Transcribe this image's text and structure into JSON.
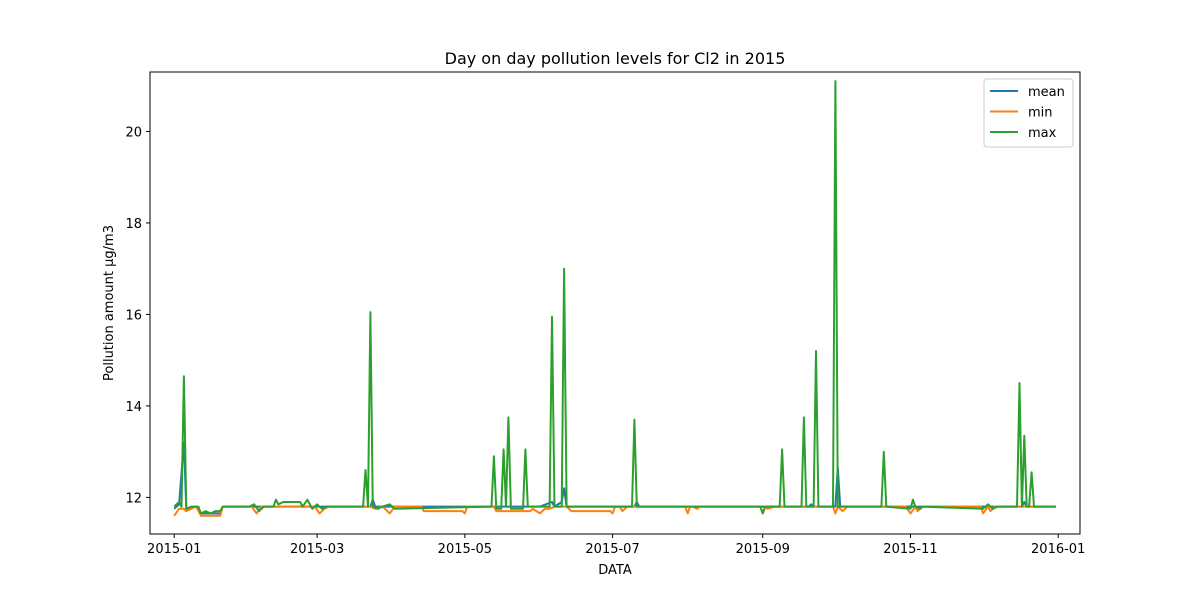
{
  "chart_data": {
    "type": "line",
    "title": "Day on day pollution levels for Cl2 in 2015",
    "xlabel": "DATA",
    "ylabel": "Pollution amount µg/m3",
    "xlim": [
      "2014-12-22",
      "2016-01-10"
    ],
    "ylim": [
      11.2,
      21.3
    ],
    "x_ticks": [
      "2015-01",
      "2015-03",
      "2015-05",
      "2015-07",
      "2015-09",
      "2015-11",
      "2016-01"
    ],
    "x_tick_dates": [
      "2015-01-01",
      "2015-03-01",
      "2015-05-01",
      "2015-07-01",
      "2015-09-01",
      "2015-11-01",
      "2016-01-01"
    ],
    "y_ticks": [
      12,
      14,
      16,
      18,
      20
    ],
    "grid": false,
    "legend": "top-right",
    "baseline": 11.8,
    "series": [
      {
        "name": "mean",
        "color": "#1f77b4",
        "points": [
          [
            "2015-01-01",
            11.75
          ],
          [
            "2015-01-03",
            11.85
          ],
          [
            "2015-01-05",
            13.2
          ],
          [
            "2015-01-06",
            11.75
          ],
          [
            "2015-01-10",
            11.8
          ],
          [
            "2015-01-12",
            11.65
          ],
          [
            "2015-01-20",
            11.65
          ],
          [
            "2015-01-21",
            11.8
          ],
          [
            "2015-03-23",
            11.8
          ],
          [
            "2015-03-24",
            11.95
          ],
          [
            "2015-03-25",
            11.8
          ],
          [
            "2015-05-31",
            11.8
          ],
          [
            "2015-06-01",
            11.8
          ],
          [
            "2015-06-06",
            11.9
          ],
          [
            "2015-06-07",
            11.8
          ],
          [
            "2015-06-10",
            11.9
          ],
          [
            "2015-06-11",
            12.2
          ],
          [
            "2015-06-12",
            11.8
          ],
          [
            "2015-07-10",
            11.8
          ],
          [
            "2015-07-11",
            11.9
          ],
          [
            "2015-07-12",
            11.8
          ],
          [
            "2015-09-20",
            11.8
          ],
          [
            "2015-09-21",
            11.85
          ],
          [
            "2015-09-22",
            11.8
          ],
          [
            "2015-10-01",
            11.8
          ],
          [
            "2015-10-02",
            12.65
          ],
          [
            "2015-10-03",
            11.8
          ],
          [
            "2015-12-17",
            11.8
          ],
          [
            "2015-12-18",
            11.9
          ],
          [
            "2015-12-19",
            11.8
          ],
          [
            "2015-12-31",
            11.8
          ]
        ]
      },
      {
        "name": "min",
        "color": "#ff7f0e",
        "points": [
          [
            "2015-01-01",
            11.6
          ],
          [
            "2015-01-03",
            11.75
          ],
          [
            "2015-01-05",
            11.75
          ],
          [
            "2015-01-06",
            11.7
          ],
          [
            "2015-01-10",
            11.8
          ],
          [
            "2015-01-12",
            11.6
          ],
          [
            "2015-01-20",
            11.6
          ],
          [
            "2015-01-21",
            11.8
          ],
          [
            "2015-02-02",
            11.8
          ],
          [
            "2015-02-04",
            11.65
          ],
          [
            "2015-02-06",
            11.8
          ],
          [
            "2015-02-28",
            11.8
          ],
          [
            "2015-03-02",
            11.65
          ],
          [
            "2015-03-04",
            11.75
          ],
          [
            "2015-03-06",
            11.8
          ],
          [
            "2015-03-23",
            11.8
          ],
          [
            "2015-03-25",
            11.75
          ],
          [
            "2015-03-28",
            11.8
          ],
          [
            "2015-03-31",
            11.65
          ],
          [
            "2015-04-02",
            11.8
          ],
          [
            "2015-04-13",
            11.8
          ],
          [
            "2015-04-14",
            11.7
          ],
          [
            "2015-04-30",
            11.7
          ],
          [
            "2015-05-01",
            11.65
          ],
          [
            "2015-05-02",
            11.8
          ],
          [
            "2015-05-13",
            11.8
          ],
          [
            "2015-05-14",
            11.7
          ],
          [
            "2015-05-28",
            11.7
          ],
          [
            "2015-05-29",
            11.75
          ],
          [
            "2015-06-01",
            11.65
          ],
          [
            "2015-06-03",
            11.75
          ],
          [
            "2015-06-05",
            11.75
          ],
          [
            "2015-06-07",
            11.8
          ],
          [
            "2015-06-12",
            11.8
          ],
          [
            "2015-06-14",
            11.7
          ],
          [
            "2015-06-30",
            11.7
          ],
          [
            "2015-07-01",
            11.65
          ],
          [
            "2015-07-02",
            11.8
          ],
          [
            "2015-07-04",
            11.8
          ],
          [
            "2015-07-05",
            11.7
          ],
          [
            "2015-07-07",
            11.8
          ],
          [
            "2015-07-31",
            11.8
          ],
          [
            "2015-08-01",
            11.65
          ],
          [
            "2015-08-02",
            11.8
          ],
          [
            "2015-08-03",
            11.8
          ],
          [
            "2015-08-05",
            11.75
          ],
          [
            "2015-08-06",
            11.8
          ],
          [
            "2015-08-31",
            11.8
          ],
          [
            "2015-09-01",
            11.65
          ],
          [
            "2015-09-02",
            11.8
          ],
          [
            "2015-09-03",
            11.75
          ],
          [
            "2015-09-06",
            11.8
          ],
          [
            "2015-09-30",
            11.8
          ],
          [
            "2015-10-01",
            11.65
          ],
          [
            "2015-10-02",
            11.8
          ],
          [
            "2015-10-04",
            11.7
          ],
          [
            "2015-10-06",
            11.8
          ],
          [
            "2015-10-30",
            11.8
          ],
          [
            "2015-11-01",
            11.65
          ],
          [
            "2015-11-03",
            11.8
          ],
          [
            "2015-11-04",
            11.7
          ],
          [
            "2015-11-06",
            11.8
          ],
          [
            "2015-11-30",
            11.8
          ],
          [
            "2015-12-01",
            11.65
          ],
          [
            "2015-12-03",
            11.8
          ],
          [
            "2015-12-04",
            11.7
          ],
          [
            "2015-12-06",
            11.8
          ],
          [
            "2015-12-31",
            11.8
          ]
        ]
      },
      {
        "name": "max",
        "color": "#2ca02c",
        "points": [
          [
            "2015-01-01",
            11.8
          ],
          [
            "2015-01-03",
            11.9
          ],
          [
            "2015-01-04",
            11.8
          ],
          [
            "2015-01-05",
            14.65
          ],
          [
            "2015-01-06",
            11.75
          ],
          [
            "2015-01-08",
            11.8
          ],
          [
            "2015-01-11",
            11.8
          ],
          [
            "2015-01-12",
            11.65
          ],
          [
            "2015-01-14",
            11.7
          ],
          [
            "2015-01-16",
            11.65
          ],
          [
            "2015-01-18",
            11.7
          ],
          [
            "2015-01-20",
            11.7
          ],
          [
            "2015-01-21",
            11.8
          ],
          [
            "2015-02-01",
            11.8
          ],
          [
            "2015-02-03",
            11.85
          ],
          [
            "2015-02-05",
            11.7
          ],
          [
            "2015-02-07",
            11.8
          ],
          [
            "2015-02-11",
            11.8
          ],
          [
            "2015-02-12",
            11.95
          ],
          [
            "2015-02-13",
            11.85
          ],
          [
            "2015-02-15",
            11.9
          ],
          [
            "2015-02-22",
            11.9
          ],
          [
            "2015-02-23",
            11.8
          ],
          [
            "2015-02-25",
            11.95
          ],
          [
            "2015-02-27",
            11.75
          ],
          [
            "2015-03-01",
            11.85
          ],
          [
            "2015-03-03",
            11.75
          ],
          [
            "2015-03-05",
            11.8
          ],
          [
            "2015-03-20",
            11.8
          ],
          [
            "2015-03-21",
            12.6
          ],
          [
            "2015-03-22",
            11.8
          ],
          [
            "2015-03-23",
            16.05
          ],
          [
            "2015-03-24",
            11.8
          ],
          [
            "2015-03-26",
            11.75
          ],
          [
            "2015-03-28",
            11.8
          ],
          [
            "2015-03-31",
            11.85
          ],
          [
            "2015-04-02",
            11.75
          ],
          [
            "2015-05-12",
            11.8
          ],
          [
            "2015-05-13",
            12.9
          ],
          [
            "2015-05-14",
            11.75
          ],
          [
            "2015-05-16",
            11.75
          ],
          [
            "2015-05-17",
            13.05
          ],
          [
            "2015-05-18",
            11.8
          ],
          [
            "2015-05-19",
            13.75
          ],
          [
            "2015-05-20",
            11.75
          ],
          [
            "2015-05-25",
            11.75
          ],
          [
            "2015-05-26",
            13.05
          ],
          [
            "2015-05-27",
            11.8
          ],
          [
            "2015-06-05",
            11.8
          ],
          [
            "2015-06-06",
            15.95
          ],
          [
            "2015-06-07",
            11.8
          ],
          [
            "2015-06-10",
            11.8
          ],
          [
            "2015-06-11",
            17.0
          ],
          [
            "2015-06-12",
            11.8
          ],
          [
            "2015-07-09",
            11.8
          ],
          [
            "2015-07-10",
            13.7
          ],
          [
            "2015-07-11",
            11.8
          ],
          [
            "2015-08-31",
            11.8
          ],
          [
            "2015-09-01",
            11.65
          ],
          [
            "2015-09-02",
            11.8
          ],
          [
            "2015-09-08",
            11.8
          ],
          [
            "2015-09-09",
            13.05
          ],
          [
            "2015-09-10",
            11.8
          ],
          [
            "2015-09-17",
            11.8
          ],
          [
            "2015-09-18",
            13.75
          ],
          [
            "2015-09-19",
            11.8
          ],
          [
            "2015-09-22",
            11.8
          ],
          [
            "2015-09-23",
            15.2
          ],
          [
            "2015-09-24",
            11.8
          ],
          [
            "2015-09-30",
            11.8
          ],
          [
            "2015-10-01",
            21.1
          ],
          [
            "2015-10-02",
            11.8
          ],
          [
            "2015-10-20",
            11.8
          ],
          [
            "2015-10-21",
            13.0
          ],
          [
            "2015-10-22",
            11.8
          ],
          [
            "2015-11-01",
            11.75
          ],
          [
            "2015-11-02",
            11.95
          ],
          [
            "2015-11-03",
            11.8
          ],
          [
            "2015-11-05",
            11.75
          ],
          [
            "2015-11-06",
            11.8
          ],
          [
            "2015-12-01",
            11.75
          ],
          [
            "2015-12-03",
            11.85
          ],
          [
            "2015-12-05",
            11.75
          ],
          [
            "2015-12-07",
            11.8
          ],
          [
            "2015-12-15",
            11.8
          ],
          [
            "2015-12-16",
            14.5
          ],
          [
            "2015-12-17",
            11.8
          ],
          [
            "2015-12-18",
            13.35
          ],
          [
            "2015-12-19",
            11.8
          ],
          [
            "2015-12-20",
            11.8
          ],
          [
            "2015-12-21",
            12.55
          ],
          [
            "2015-12-22",
            11.8
          ],
          [
            "2015-12-31",
            11.8
          ]
        ]
      }
    ]
  }
}
